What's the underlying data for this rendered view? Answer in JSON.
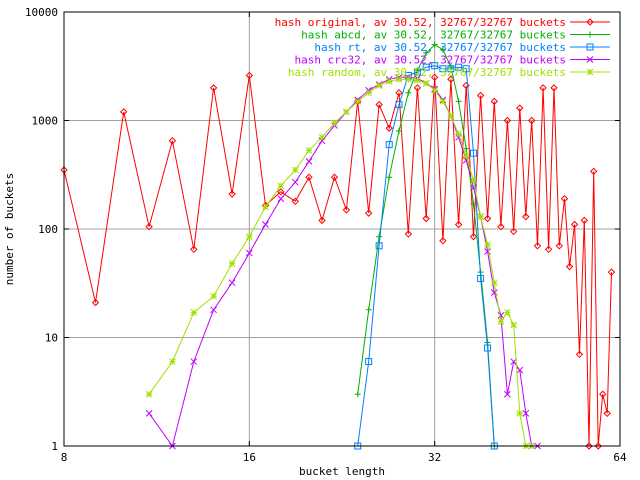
{
  "chart_data": {
    "type": "line",
    "xlabel": "bucket length",
    "ylabel": "number of buckets",
    "xscale": "log2",
    "yscale": "log10",
    "xlim": [
      8,
      64
    ],
    "ylim": [
      1,
      10000
    ],
    "xticks": [
      8,
      16,
      32,
      64
    ],
    "yticks": [
      1,
      10,
      100,
      1000,
      10000
    ],
    "grid": true,
    "legend_position": "top-right",
    "series": [
      {
        "name": "hash original, av 30.52, 32767/32767 buckets",
        "color": "#ff0000",
        "marker": "diamond",
        "points": [
          [
            8,
            350
          ],
          [
            9,
            21
          ],
          [
            10,
            1200
          ],
          [
            11,
            105
          ],
          [
            12,
            650
          ],
          [
            13,
            65
          ],
          [
            14,
            2000
          ],
          [
            15,
            210
          ],
          [
            16,
            2600
          ],
          [
            17,
            165
          ],
          [
            18,
            220
          ],
          [
            19,
            180
          ],
          [
            20,
            300
          ],
          [
            21,
            120
          ],
          [
            22,
            300
          ],
          [
            23,
            150
          ],
          [
            24,
            1500
          ],
          [
            25,
            140
          ],
          [
            26,
            1400
          ],
          [
            27,
            850
          ],
          [
            28,
            1800
          ],
          [
            29,
            90
          ],
          [
            30,
            2000
          ],
          [
            31,
            125
          ],
          [
            32,
            2500
          ],
          [
            33,
            78
          ],
          [
            34,
            2400
          ],
          [
            35,
            110
          ],
          [
            36,
            2100
          ],
          [
            37,
            85
          ],
          [
            38,
            1700
          ],
          [
            39,
            125
          ],
          [
            40,
            1500
          ],
          [
            41,
            105
          ],
          [
            42,
            1000
          ],
          [
            43,
            95
          ],
          [
            44,
            1300
          ],
          [
            45,
            130
          ],
          [
            46,
            1000
          ],
          [
            47,
            70
          ],
          [
            48,
            2000
          ],
          [
            49,
            65
          ],
          [
            50,
            2000
          ],
          [
            51,
            70
          ],
          [
            52,
            190
          ],
          [
            53,
            45
          ],
          [
            54,
            110
          ],
          [
            55,
            7
          ],
          [
            56,
            120
          ],
          [
            57,
            1
          ],
          [
            58,
            340
          ],
          [
            59,
            1
          ],
          [
            60,
            3
          ],
          [
            61,
            2
          ],
          [
            62,
            40
          ]
        ]
      },
      {
        "name": "hash abcd, av 30.52, 32767/32767 buckets",
        "color": "#00b000",
        "marker": "plus",
        "points": [
          [
            24,
            3
          ],
          [
            25,
            18
          ],
          [
            26,
            85
          ],
          [
            27,
            300
          ],
          [
            28,
            800
          ],
          [
            29,
            1800
          ],
          [
            30,
            2900
          ],
          [
            31,
            4200
          ],
          [
            32,
            5000
          ],
          [
            33,
            4500
          ],
          [
            34,
            3100
          ],
          [
            35,
            1500
          ],
          [
            36,
            550
          ],
          [
            37,
            170
          ],
          [
            38,
            40
          ],
          [
            39,
            9
          ],
          [
            40,
            1
          ]
        ]
      },
      {
        "name": "hash rt, av 30.52, 32767/32767 buckets",
        "color": "#0080ff",
        "marker": "square",
        "points": [
          [
            24,
            1
          ],
          [
            25,
            6
          ],
          [
            26,
            70
          ],
          [
            27,
            600
          ],
          [
            28,
            1400
          ],
          [
            29,
            2600
          ],
          [
            30,
            2800
          ],
          [
            31,
            3100
          ],
          [
            32,
            3200
          ],
          [
            33,
            3000
          ],
          [
            34,
            3000
          ],
          [
            35,
            3100
          ],
          [
            36,
            3000
          ],
          [
            37,
            500
          ],
          [
            38,
            35
          ],
          [
            39,
            8
          ],
          [
            40,
            1
          ]
        ]
      },
      {
        "name": "hash crc32, av 30.52, 32767/32767 buckets",
        "color": "#c000ff",
        "marker": "x",
        "points": [
          [
            11,
            2
          ],
          [
            12,
            1
          ],
          [
            13,
            6
          ],
          [
            14,
            18
          ],
          [
            15,
            32
          ],
          [
            16,
            60
          ],
          [
            17,
            110
          ],
          [
            18,
            190
          ],
          [
            19,
            270
          ],
          [
            20,
            420
          ],
          [
            21,
            650
          ],
          [
            22,
            900
          ],
          [
            23,
            1200
          ],
          [
            24,
            1550
          ],
          [
            25,
            1900
          ],
          [
            26,
            2150
          ],
          [
            27,
            2400
          ],
          [
            28,
            2500
          ],
          [
            29,
            2500
          ],
          [
            30,
            2450
          ],
          [
            31,
            2200
          ],
          [
            32,
            1950
          ],
          [
            33,
            1550
          ],
          [
            34,
            1100
          ],
          [
            35,
            700
          ],
          [
            36,
            430
          ],
          [
            37,
            240
          ],
          [
            38,
            130
          ],
          [
            39,
            62
          ],
          [
            40,
            26
          ],
          [
            41,
            16
          ],
          [
            42,
            3
          ],
          [
            43,
            6
          ],
          [
            44,
            5
          ],
          [
            45,
            2
          ],
          [
            46,
            1
          ],
          [
            47,
            1
          ]
        ]
      },
      {
        "name": "hash random, av 30.52, 32767/32767 buckets",
        "color": "#a0e000",
        "marker": "star",
        "points": [
          [
            11,
            3
          ],
          [
            12,
            6
          ],
          [
            13,
            17
          ],
          [
            14,
            24
          ],
          [
            15,
            48
          ],
          [
            16,
            85
          ],
          [
            17,
            160
          ],
          [
            18,
            250
          ],
          [
            19,
            350
          ],
          [
            20,
            530
          ],
          [
            21,
            700
          ],
          [
            22,
            950
          ],
          [
            23,
            1200
          ],
          [
            24,
            1500
          ],
          [
            25,
            1800
          ],
          [
            26,
            2100
          ],
          [
            27,
            2300
          ],
          [
            28,
            2400
          ],
          [
            29,
            2400
          ],
          [
            30,
            2350
          ],
          [
            31,
            2200
          ],
          [
            32,
            1900
          ],
          [
            33,
            1500
          ],
          [
            34,
            1100
          ],
          [
            35,
            750
          ],
          [
            36,
            470
          ],
          [
            37,
            280
          ],
          [
            38,
            130
          ],
          [
            39,
            72
          ],
          [
            40,
            32
          ],
          [
            41,
            14
          ],
          [
            42,
            17
          ],
          [
            43,
            13
          ],
          [
            44,
            2
          ],
          [
            45,
            1
          ],
          [
            46,
            1
          ]
        ]
      }
    ]
  }
}
